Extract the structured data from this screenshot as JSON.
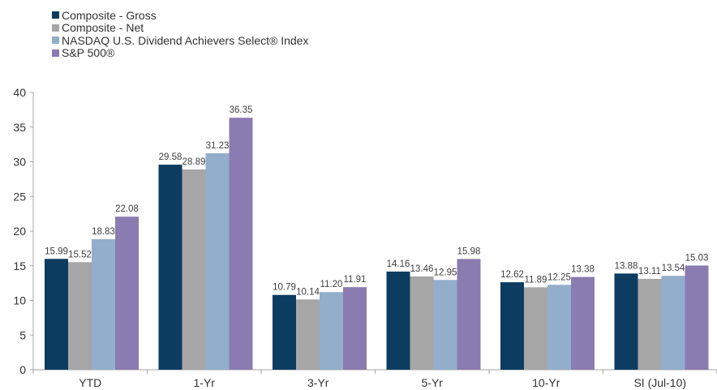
{
  "chart_data": {
    "type": "bar",
    "categories": [
      "YTD",
      "1-Yr",
      "3-Yr",
      "5-Yr",
      "10-Yr",
      "SI (Jul-10)"
    ],
    "series": [
      {
        "name": "Composite - Gross",
        "color": "#0d3c61",
        "values": [
          15.99,
          29.58,
          10.79,
          14.16,
          12.62,
          13.88
        ]
      },
      {
        "name": "Composite - Net",
        "color": "#a6a6a6",
        "values": [
          15.52,
          28.89,
          10.14,
          13.46,
          11.89,
          13.11
        ]
      },
      {
        "name": "NASDAQ U.S. Dividend Achievers Select® Index",
        "color": "#92aecb",
        "values": [
          18.83,
          31.23,
          11.2,
          12.95,
          12.25,
          13.54
        ]
      },
      {
        "name": "S&P 500®",
        "color": "#8a7bb0",
        "values": [
          22.08,
          36.35,
          11.91,
          15.98,
          13.38,
          15.03
        ]
      }
    ],
    "ylim": [
      0,
      40
    ],
    "yticks": [
      0,
      5,
      10,
      15,
      20,
      25,
      30,
      35,
      40
    ],
    "value_labels": [
      [
        "15.99",
        "15.52",
        "18.83",
        "22.08"
      ],
      [
        "29.58",
        "28.89",
        "31.23",
        "36.35"
      ],
      [
        "10.79",
        "10.14",
        "11.20",
        "11.91"
      ],
      [
        "14.16",
        "13.46",
        "12.95",
        "15.98"
      ],
      [
        "12.62",
        "11.89",
        "12.25",
        "13.38"
      ],
      [
        "13.88",
        "13.11",
        "13.54",
        "15.03"
      ]
    ],
    "grid": false,
    "legend_position": "top-left"
  }
}
